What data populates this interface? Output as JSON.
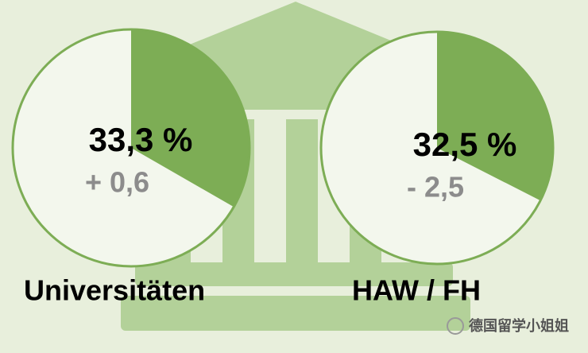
{
  "chart_data": [
    {
      "type": "pie",
      "categories": [
        "Universitäten"
      ],
      "values": [
        33.3
      ],
      "value_labels": [
        "33,3 %"
      ],
      "annotation": "+ 0,6",
      "color": "#7dad55"
    },
    {
      "type": "pie",
      "categories": [
        "HAW / FH"
      ],
      "values": [
        32.5
      ],
      "value_labels": [
        "32,5 %"
      ],
      "annotation": "- 2,5",
      "color": "#7dad55"
    }
  ],
  "watermark": "德国留学小姐姐"
}
